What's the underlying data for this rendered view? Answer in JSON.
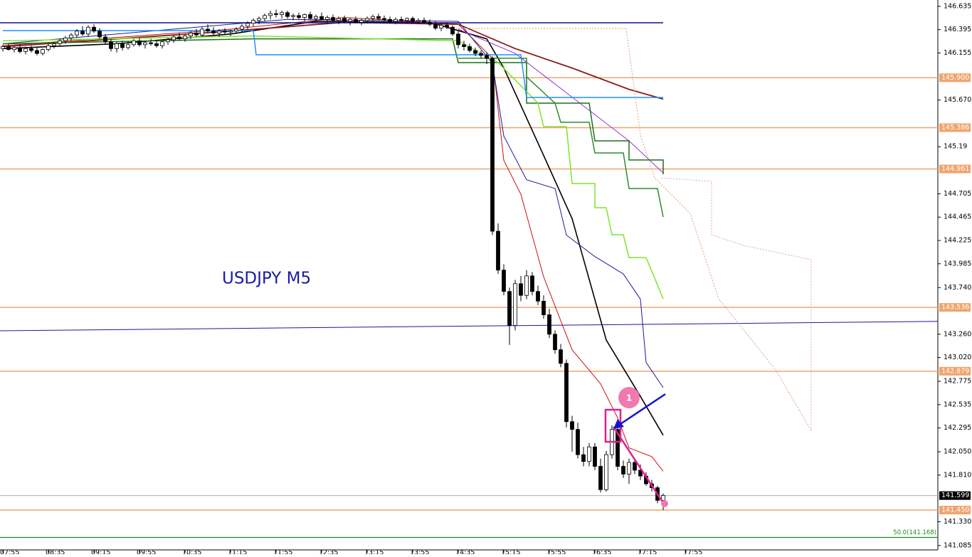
{
  "chart_data": {
    "type": "candlestick",
    "title": "USDJPY M5",
    "annotation": "1",
    "ylim": [
      141.04,
      146.7
    ],
    "yticks": [
      146.635,
      146.395,
      146.155,
      {
        "value": 145.67,
        "label": "145.670"
      },
      145.19,
      144.705,
      144.465,
      144.225,
      143.985,
      {
        "value": 143.74,
        "label": "143.740"
      },
      {
        "value": 143.26,
        "label": "143.260"
      },
      {
        "value": 143.02,
        "label": "143.020"
      },
      142.775,
      142.535,
      142.295,
      {
        "value": 142.05,
        "label": "142.050"
      },
      {
        "value": 141.81,
        "label": "141.810"
      },
      {
        "value": 141.33,
        "label": "141.330"
      },
      141.085
    ],
    "x_labels": [
      "07:55",
      "08:35",
      "09:15",
      "09:55",
      "10:35",
      "11:15",
      "11:55",
      "12:35",
      "13:15",
      "13:55",
      "14:35",
      "15:15",
      "15:55",
      "16:35",
      "17:15",
      "17:55"
    ],
    "level_color": "#f0a46c",
    "levels": [
      {
        "value": 145.9,
        "label": "145.900"
      },
      145.386,
      144.961,
      143.536,
      142.879,
      {
        "value": 141.45,
        "label": "141.450"
      }
    ],
    "current_price": 141.599,
    "fib": {
      "value": 141.168,
      "label": "50.0(141.168)",
      "color": "#1e8c1e"
    },
    "candles": [
      [
        146.2,
        146.24,
        146.17,
        146.22
      ],
      [
        146.22,
        146.25,
        146.18,
        146.19
      ],
      [
        146.19,
        146.23,
        146.16,
        146.21
      ],
      [
        146.21,
        146.24,
        146.15,
        146.17
      ],
      [
        146.17,
        146.22,
        146.14,
        146.2
      ],
      [
        146.2,
        146.23,
        146.16,
        146.18
      ],
      [
        146.18,
        146.21,
        146.13,
        146.15
      ],
      [
        146.15,
        146.2,
        146.13,
        146.19
      ],
      [
        146.19,
        146.25,
        146.17,
        146.23
      ],
      [
        146.23,
        146.27,
        146.2,
        146.25
      ],
      [
        146.25,
        146.3,
        146.22,
        146.28
      ],
      [
        146.28,
        146.33,
        146.25,
        146.31
      ],
      [
        146.31,
        146.36,
        146.28,
        146.34
      ],
      [
        146.34,
        146.4,
        146.31,
        146.38
      ],
      [
        146.38,
        146.43,
        146.33,
        146.35
      ],
      [
        146.35,
        146.44,
        146.32,
        146.42
      ],
      [
        146.42,
        146.45,
        146.36,
        146.38
      ],
      [
        146.38,
        146.41,
        146.3,
        146.32
      ],
      [
        146.32,
        146.35,
        146.24,
        146.27
      ],
      [
        146.27,
        146.3,
        146.17,
        146.2
      ],
      [
        146.2,
        146.27,
        146.16,
        146.25
      ],
      [
        146.25,
        146.28,
        146.18,
        146.21
      ],
      [
        146.21,
        146.27,
        146.19,
        146.24
      ],
      [
        146.24,
        146.3,
        146.22,
        146.28
      ],
      [
        146.28,
        146.31,
        146.22,
        146.24
      ],
      [
        146.24,
        146.28,
        146.2,
        146.26
      ],
      [
        146.26,
        146.3,
        146.23,
        146.25
      ],
      [
        146.25,
        146.29,
        146.21,
        146.23
      ],
      [
        146.23,
        146.28,
        146.2,
        146.27
      ],
      [
        146.27,
        146.31,
        146.24,
        146.29
      ],
      [
        146.29,
        146.34,
        146.26,
        146.32
      ],
      [
        146.32,
        146.36,
        146.28,
        146.3
      ],
      [
        146.3,
        146.35,
        146.27,
        146.33
      ],
      [
        146.33,
        146.38,
        146.3,
        146.36
      ],
      [
        146.36,
        146.4,
        146.32,
        146.34
      ],
      [
        146.34,
        146.42,
        146.32,
        146.4
      ],
      [
        146.4,
        146.45,
        146.36,
        146.38
      ],
      [
        146.38,
        146.42,
        146.33,
        146.36
      ],
      [
        146.36,
        146.4,
        146.32,
        146.38
      ],
      [
        146.38,
        146.41,
        146.34,
        146.37
      ],
      [
        146.37,
        146.4,
        146.33,
        146.38
      ],
      [
        146.38,
        146.42,
        146.35,
        146.4
      ],
      [
        146.4,
        146.45,
        146.37,
        146.43
      ],
      [
        146.43,
        146.48,
        146.4,
        146.46
      ],
      [
        146.46,
        146.51,
        146.43,
        146.49
      ],
      [
        146.49,
        146.53,
        146.45,
        146.51
      ],
      [
        146.51,
        146.56,
        146.48,
        146.54
      ],
      [
        146.54,
        146.59,
        146.5,
        146.56
      ],
      [
        146.56,
        146.6,
        146.52,
        146.55
      ],
      [
        146.55,
        146.59,
        146.51,
        146.57
      ],
      [
        146.57,
        146.59,
        146.51,
        146.53
      ],
      [
        146.53,
        146.56,
        146.49,
        146.54
      ],
      [
        146.54,
        146.57,
        146.5,
        146.52
      ],
      [
        146.52,
        146.56,
        146.48,
        146.55
      ],
      [
        146.55,
        146.58,
        146.5,
        146.51
      ],
      [
        146.51,
        146.55,
        146.47,
        146.53
      ],
      [
        146.53,
        146.57,
        146.49,
        146.5
      ],
      [
        146.5,
        146.54,
        146.46,
        146.52
      ],
      [
        146.52,
        146.55,
        146.47,
        146.49
      ],
      [
        146.49,
        146.53,
        146.45,
        146.51
      ],
      [
        146.51,
        146.54,
        146.46,
        146.48
      ],
      [
        146.48,
        146.52,
        146.44,
        146.5
      ],
      [
        146.5,
        146.53,
        146.46,
        146.47
      ],
      [
        146.47,
        146.51,
        146.44,
        146.49
      ],
      [
        146.49,
        146.53,
        146.46,
        146.51
      ],
      [
        146.51,
        146.55,
        146.48,
        146.53
      ],
      [
        146.53,
        146.56,
        146.49,
        146.51
      ],
      [
        146.51,
        146.54,
        146.47,
        146.5
      ],
      [
        146.5,
        146.53,
        146.46,
        146.48
      ],
      [
        146.48,
        146.52,
        146.45,
        146.5
      ],
      [
        146.5,
        146.53,
        146.47,
        146.49
      ],
      [
        146.49,
        146.52,
        146.46,
        146.51
      ],
      [
        146.51,
        146.53,
        146.47,
        146.48
      ],
      [
        146.48,
        146.51,
        146.45,
        146.49
      ],
      [
        146.49,
        146.52,
        146.46,
        146.47
      ],
      [
        146.47,
        146.5,
        146.43,
        146.45
      ],
      [
        146.45,
        146.48,
        146.39,
        146.41
      ],
      [
        146.41,
        146.46,
        146.38,
        146.44
      ],
      [
        146.44,
        146.47,
        146.4,
        146.42
      ],
      [
        146.42,
        146.44,
        146.33,
        146.35
      ],
      [
        146.35,
        146.38,
        146.2,
        146.24
      ],
      [
        146.24,
        146.28,
        146.18,
        146.22
      ],
      [
        146.22,
        146.25,
        146.16,
        146.18
      ],
      [
        146.18,
        146.21,
        146.12,
        146.15
      ],
      [
        146.15,
        146.18,
        146.1,
        146.13
      ],
      [
        146.13,
        146.16,
        146.04,
        146.1
      ],
      [
        146.1,
        146.12,
        144.28,
        144.32
      ],
      [
        144.32,
        144.4,
        143.88,
        143.92
      ],
      [
        143.92,
        143.98,
        143.66,
        143.7
      ],
      [
        143.7,
        143.74,
        143.15,
        143.35
      ],
      [
        143.35,
        143.82,
        143.3,
        143.78
      ],
      [
        143.78,
        143.86,
        143.6,
        143.66
      ],
      [
        143.66,
        143.92,
        143.62,
        143.86
      ],
      [
        143.86,
        143.9,
        143.66,
        143.7
      ],
      [
        143.7,
        143.76,
        143.56,
        143.6
      ],
      [
        143.6,
        143.66,
        143.42,
        143.46
      ],
      [
        143.46,
        143.52,
        143.22,
        143.26
      ],
      [
        143.26,
        143.3,
        143.06,
        143.1
      ],
      [
        143.1,
        143.16,
        142.92,
        142.96
      ],
      [
        142.96,
        143.0,
        142.3,
        142.36
      ],
      [
        142.36,
        142.42,
        142.05,
        142.28
      ],
      [
        142.28,
        142.35,
        141.98,
        142.02
      ],
      [
        142.02,
        142.1,
        141.9,
        141.95
      ],
      [
        141.95,
        142.14,
        141.9,
        142.1
      ],
      [
        142.1,
        142.14,
        141.86,
        141.9
      ],
      [
        141.9,
        141.98,
        141.63,
        141.66
      ],
      [
        141.66,
        142.06,
        141.64,
        142.02
      ],
      [
        142.02,
        142.32,
        141.98,
        142.28
      ],
      [
        142.28,
        142.3,
        141.86,
        141.9
      ],
      [
        141.9,
        141.96,
        141.78,
        141.82
      ],
      [
        141.82,
        141.98,
        141.72,
        141.94
      ],
      [
        141.94,
        141.98,
        141.82,
        141.86
      ],
      [
        141.86,
        141.92,
        141.76,
        141.8
      ],
      [
        141.8,
        141.84,
        141.7,
        141.72
      ],
      [
        141.72,
        141.76,
        141.64,
        141.68
      ],
      [
        141.68,
        141.7,
        141.52,
        141.55
      ],
      [
        141.55,
        141.62,
        141.45,
        141.6
      ]
    ],
    "lines": [
      {
        "color": "#000000",
        "width": 1.6,
        "x": [
          0,
          20,
          40,
          55,
          75,
          85,
          88,
          95,
          100,
          106,
          112,
          116
        ],
        "values": [
          146.2,
          146.25,
          146.35,
          146.48,
          146.47,
          146.3,
          146.0,
          145.1,
          144.45,
          143.2,
          142.62,
          142.22
        ]
      },
      {
        "color": "#cc1111",
        "width": 1,
        "x": [
          0,
          40,
          60,
          80,
          86,
          88,
          91,
          95,
          100,
          105,
          108,
          110,
          114,
          116
        ],
        "values": [
          146.23,
          146.4,
          146.52,
          146.45,
          146.1,
          145.05,
          144.7,
          143.85,
          143.1,
          142.75,
          142.4,
          142.09,
          142.0,
          141.85
        ]
      },
      {
        "color": "#1a1a9a",
        "width": 1,
        "x": [
          0,
          50,
          80,
          86,
          88,
          92,
          97,
          99,
          104,
          109,
          112,
          113,
          116
        ],
        "values": [
          146.25,
          146.5,
          146.48,
          146.05,
          145.3,
          144.85,
          144.76,
          144.28,
          144.06,
          143.88,
          143.62,
          142.97,
          142.71
        ]
      },
      {
        "color": "#8b1a1a",
        "width": 1.8,
        "x": [
          0,
          40,
          60,
          80,
          90,
          100,
          110,
          116
        ],
        "values": [
          146.22,
          146.38,
          146.47,
          146.45,
          146.2,
          146.0,
          145.78,
          145.68
        ]
      },
      {
        "color": "#9932cc",
        "width": 1,
        "x": [
          80,
          90,
          100,
          110,
          116
        ],
        "values": [
          146.4,
          146.15,
          145.7,
          145.25,
          144.92
        ]
      },
      {
        "color": "#1e6e1e",
        "width": 1.5,
        "x": [
          0,
          44,
          79,
          80,
          92,
          92,
          103,
          104,
          110,
          110,
          116,
          116
        ],
        "values": [
          146.25,
          146.3,
          146.3,
          146.056,
          146.056,
          145.638,
          145.638,
          145.25,
          145.25,
          145.053,
          145.053,
          144.906
        ]
      },
      {
        "color": "#2e8b2e",
        "width": 1.5,
        "x": [
          80,
          92,
          92,
          97,
          98,
          103,
          104,
          109,
          110,
          115,
          116
        ],
        "values": [
          146.1,
          146.1,
          145.909,
          145.638,
          145.441,
          145.441,
          145.126,
          145.126,
          144.76,
          144.76,
          144.467
        ]
      },
      {
        "color": "#7ce62a",
        "width": 1.5,
        "x": [
          0,
          44,
          80,
          87,
          94,
          95,
          99,
          100,
          104,
          104,
          106,
          107,
          109,
          110,
          113,
          116
        ],
        "values": [
          146.28,
          146.33,
          146.28,
          146.056,
          145.638,
          145.397,
          145.397,
          144.811,
          144.811,
          144.562,
          144.562,
          144.284,
          144.284,
          144.049,
          144.049,
          143.625
        ]
      },
      {
        "color": "#1e90ff",
        "width": 1.5,
        "x": [
          0,
          44,
          44.5,
          91,
          92,
          116
        ],
        "values": [
          146.385,
          146.385,
          146.136,
          146.136,
          145.697,
          145.697
        ]
      },
      {
        "color": "#10108a",
        "width": 1.5,
        "x": [
          -0.5,
          116
        ],
        "values": [
          146.466,
          146.466
        ]
      },
      {
        "color": "#1a1a9a",
        "width": 1,
        "x": [
          -0.5,
          164.25
        ],
        "values": [
          143.295,
          143.392
        ]
      },
      {
        "color": "#d9a07a",
        "width": 1,
        "dotted": true,
        "x": [
          79.5,
          109.5,
          112,
          114.5,
          120.75,
          125.75,
          130.75,
          135.75,
          142
        ],
        "values": [
          146.407,
          146.407,
          145.309,
          144.869,
          144.503,
          143.625,
          143.259,
          142.892,
          142.27
        ]
      },
      {
        "color": "#e2a0c8",
        "width": 1,
        "dotted": true,
        "x": [
          115.75,
          124.5,
          124.5,
          130.1,
          142,
          142
        ],
        "values": [
          144.869,
          144.833,
          144.284,
          144.174,
          144.027,
          142.27
        ]
      }
    ]
  }
}
